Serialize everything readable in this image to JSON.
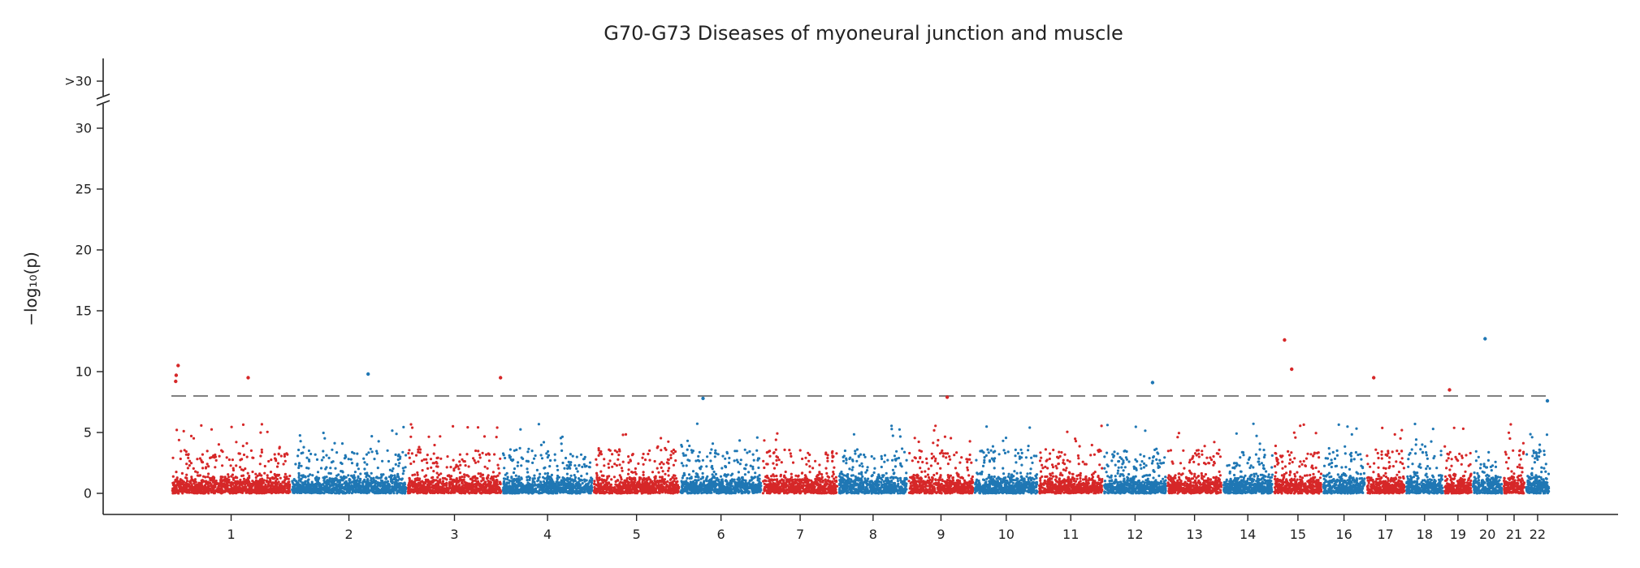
{
  "chart_data": {
    "type": "scatter",
    "subtype": "manhattan",
    "title": "G70-G73 Diseases of myoneural junction and muscle",
    "ylabel": "−log₁₀(p)",
    "xlabel": "",
    "ylim": [
      0,
      32
    ],
    "y_break": {
      "label": ">30",
      "above": 30
    },
    "yticks": [
      0,
      5,
      10,
      15,
      20,
      25,
      30
    ],
    "significance_line": 8,
    "grid": false,
    "legend": "none",
    "colors": {
      "odd_chromosomes": "#d62728",
      "even_chromosomes": "#1f77b4",
      "threshold": "#808080"
    },
    "chromosomes": [
      {
        "label": "1",
        "range": [
          0,
          249
        ]
      },
      {
        "label": "2",
        "range": [
          249,
          491
        ]
      },
      {
        "label": "3",
        "range": [
          491,
          689
        ]
      },
      {
        "label": "4",
        "range": [
          689,
          879
        ]
      },
      {
        "label": "5",
        "range": [
          879,
          1060
        ]
      },
      {
        "label": "6",
        "range": [
          1060,
          1231
        ]
      },
      {
        "label": "7",
        "range": [
          1231,
          1390
        ]
      },
      {
        "label": "8",
        "range": [
          1390,
          1535
        ]
      },
      {
        "label": "9",
        "range": [
          1535,
          1673
        ]
      },
      {
        "label": "10",
        "range": [
          1673,
          1807
        ]
      },
      {
        "label": "11",
        "range": [
          1807,
          1942
        ]
      },
      {
        "label": "12",
        "range": [
          1942,
          2075
        ]
      },
      {
        "label": "13",
        "range": [
          2075,
          2190
        ]
      },
      {
        "label": "14",
        "range": [
          2190,
          2297
        ]
      },
      {
        "label": "15",
        "range": [
          2297,
          2399
        ]
      },
      {
        "label": "16",
        "range": [
          2399,
          2489
        ]
      },
      {
        "label": "17",
        "range": [
          2489,
          2572
        ]
      },
      {
        "label": "18",
        "range": [
          2572,
          2652
        ]
      },
      {
        "label": "19",
        "range": [
          2652,
          2711
        ]
      },
      {
        "label": "20",
        "range": [
          2711,
          2775
        ]
      },
      {
        "label": "21",
        "range": [
          2775,
          2822
        ]
      },
      {
        "label": "22",
        "range": [
          2822,
          2873
        ]
      }
    ],
    "top_hits": [
      {
        "chr": "1",
        "x": 14,
        "y": 10.5
      },
      {
        "chr": "1",
        "x": 10,
        "y": 9.7
      },
      {
        "chr": "1",
        "x": 9,
        "y": 9.2
      },
      {
        "chr": "1",
        "x": 160,
        "y": 9.5
      },
      {
        "chr": "2",
        "x": 410,
        "y": 9.8
      },
      {
        "chr": "3",
        "x": 686,
        "y": 9.5
      },
      {
        "chr": "12",
        "x": 2045,
        "y": 9.1
      },
      {
        "chr": "15",
        "x": 2320,
        "y": 12.6
      },
      {
        "chr": "15",
        "x": 2335,
        "y": 10.2
      },
      {
        "chr": "17",
        "x": 2506,
        "y": 9.5
      },
      {
        "chr": "20",
        "x": 2738,
        "y": 12.7
      },
      {
        "chr": "19",
        "x": 2664,
        "y": 8.5
      },
      {
        "chr": "6",
        "x": 1108,
        "y": 7.8
      },
      {
        "chr": "9",
        "x": 1617,
        "y": 7.9
      },
      {
        "chr": "22",
        "x": 2868,
        "y": 7.6
      }
    ]
  }
}
